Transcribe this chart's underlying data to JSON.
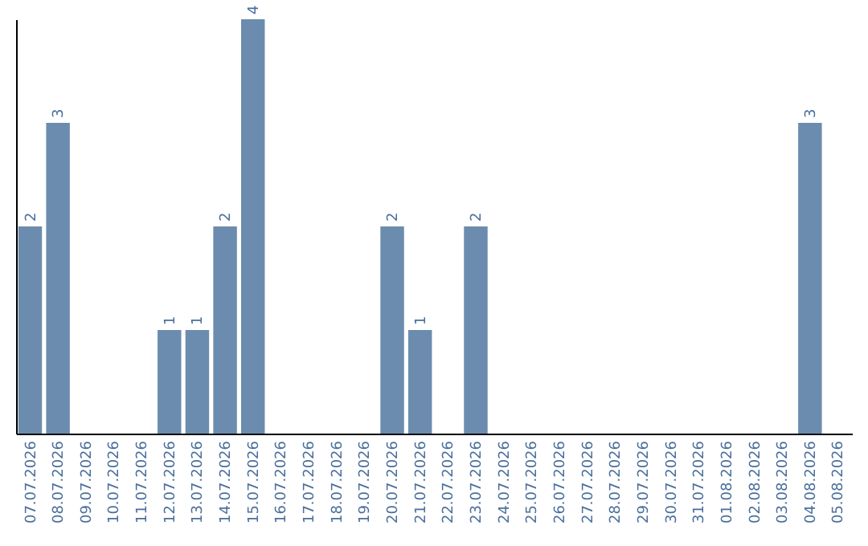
{
  "chart_data": {
    "type": "bar",
    "categories": [
      "07.07.2026",
      "08.07.2026",
      "09.07.2026",
      "10.07.2026",
      "11.07.2026",
      "12.07.2026",
      "13.07.2026",
      "14.07.2026",
      "15.07.2026",
      "16.07.2026",
      "17.07.2026",
      "18.07.2026",
      "19.07.2026",
      "20.07.2026",
      "21.07.2026",
      "22.07.2026",
      "23.07.2026",
      "24.07.2026",
      "25.07.2026",
      "26.07.2026",
      "27.07.2026",
      "28.07.2026",
      "29.07.2026",
      "30.07.2026",
      "31.07.2026",
      "01.08.2026",
      "02.08.2026",
      "03.08.2026",
      "04.08.2026",
      "05.08.2026"
    ],
    "values": [
      2,
      3,
      null,
      null,
      null,
      1,
      1,
      2,
      4,
      null,
      null,
      null,
      null,
      2,
      1,
      null,
      2,
      null,
      null,
      null,
      null,
      null,
      null,
      null,
      null,
      null,
      null,
      null,
      3,
      null
    ],
    "color": "#6b8cae",
    "data_labels": true,
    "tick_labels": "x"
  }
}
